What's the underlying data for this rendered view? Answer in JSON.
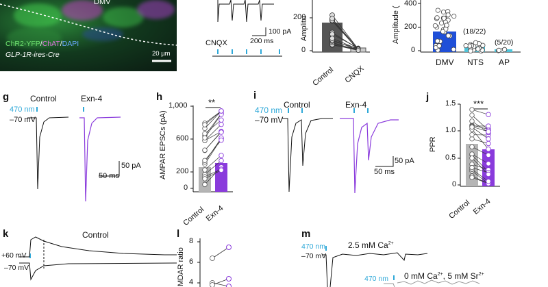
{
  "panel_letters": [
    "g",
    "h",
    "i",
    "j",
    "k",
    "l",
    "m"
  ],
  "micro": {
    "region": "DMV",
    "legend_a": "ChR2-YFP",
    "legend_sep1": "/",
    "legend_b": "ChAT",
    "legend_sep2": "/",
    "legend_c": "DAPI",
    "genotype": "GLP-1R-ires-Cre",
    "scale": "20 µm",
    "colors": {
      "chr2": "#6ee06e",
      "chat": "#e070e0",
      "dapi": "#6aa8ff"
    }
  },
  "top_trace": {
    "scale_y": "100 pA",
    "scale_x": "200 ms",
    "drug": "CNQX"
  },
  "panel_c": {
    "ylabel": "Amplitu",
    "tick_200": "200",
    "tick_0": "0",
    "cat_control": "Control",
    "cat_cnqx": "CNQX"
  },
  "panel_d": {
    "ylabel": "Amplitude (",
    "ticks": [
      "400",
      "200",
      "0"
    ],
    "categories": [
      "DMV",
      "NTS",
      "AP"
    ],
    "ratio_nts": "(18/22)",
    "ratio_ap": "(5/20)",
    "colors": {
      "dmv": "#1f4fd8",
      "other": "#4fc3d8"
    }
  },
  "panel_g": {
    "control": "Control",
    "exn4": "Exn-4",
    "stim": "470 nm",
    "hold": "–70 mV",
    "scale_y": "50 pA",
    "scale_x": "50 ms"
  },
  "panel_h": {
    "ylabel": "AMPAR EPSCs (pA)",
    "ticks": [
      "1,000",
      "600",
      "200",
      "0"
    ],
    "sig": "**",
    "cat_control": "Control",
    "cat_exn4": "Exn-4",
    "colors": {
      "control": "#b5b5b5",
      "exn4": "#8a3bdc"
    }
  },
  "panel_i": {
    "control": "Control",
    "exn4": "Exn-4",
    "stim": "470 nm",
    "hold": "–70 mV",
    "scale_y": "50 pA",
    "scale_x": "50 ms"
  },
  "panel_j": {
    "ylabel": "PPR",
    "ticks": [
      "1.5",
      "1.0",
      "0.5",
      "0"
    ],
    "sig": "***",
    "cat_control": "Control",
    "cat_exn4": "Exn-4"
  },
  "panel_k": {
    "title": "Control",
    "hold_pos": "+60 mV",
    "hold_neg": "–70 mV"
  },
  "panel_l": {
    "ylabel": "MDAR ratio",
    "ticks": [
      "8",
      "6",
      "4"
    ]
  },
  "panel_m": {
    "stim": "470 nm",
    "hold": "–70 mV",
    "cond1_prefix": "2.5 mM Ca",
    "cond1_sup": "2+",
    "cond2_prefix": "0 mM Ca",
    "cond2_sup": "2+",
    "cond2_mid": ", 5 mM Sr",
    "cond2_sup2": "2+",
    "stim2": "470 nm"
  }
}
